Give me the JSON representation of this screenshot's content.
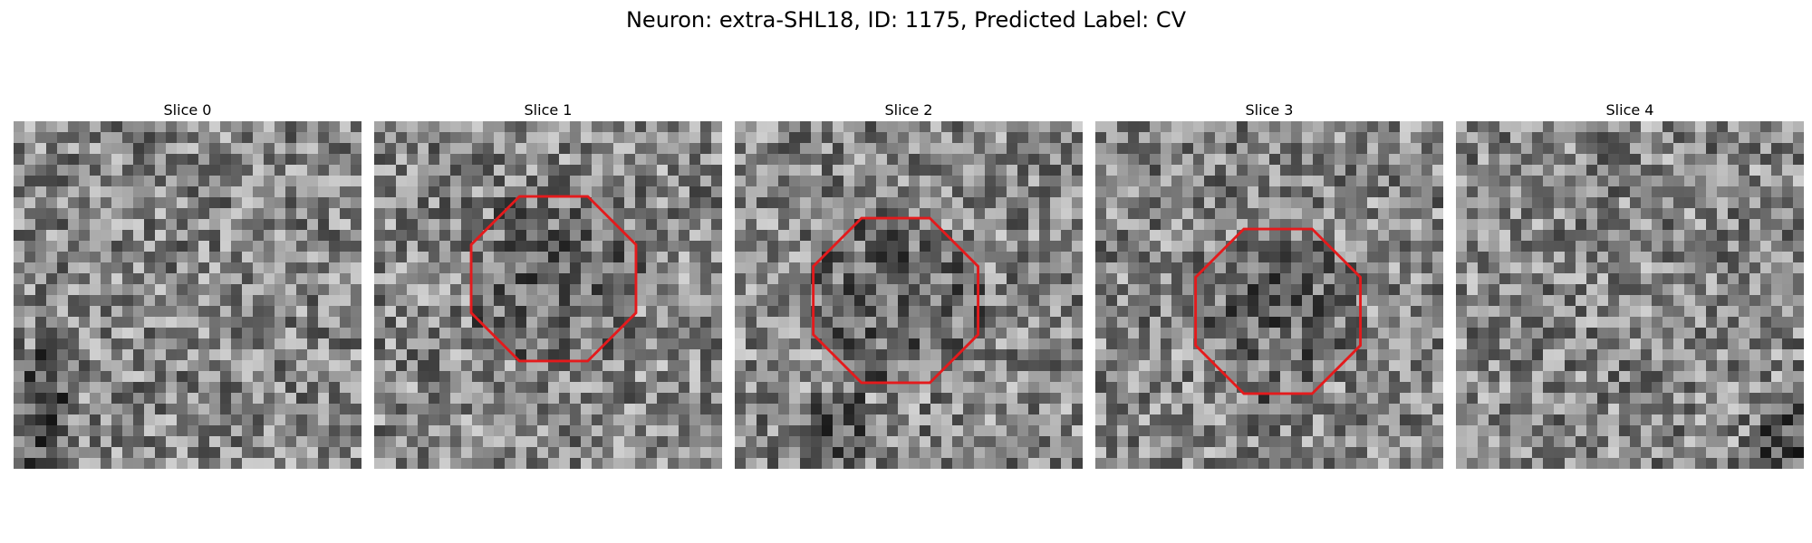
{
  "figure": {
    "title": "Neuron: extra-SHL18, ID: 1175, Predicted Label: CV",
    "colormap": "gray",
    "grid_size": 32,
    "outline_color": "#e41a1c"
  },
  "slices": [
    {
      "title": "Slice 0",
      "has_outline": false
    },
    {
      "title": "Slice 1",
      "has_outline": true,
      "outline": {
        "cx": 16.5,
        "cy": 14.5,
        "r": 8.2
      }
    },
    {
      "title": "Slice 2",
      "has_outline": true,
      "outline": {
        "cx": 14.8,
        "cy": 16.5,
        "r": 8.2
      }
    },
    {
      "title": "Slice 3",
      "has_outline": true,
      "outline": {
        "cx": 16.8,
        "cy": 17.5,
        "r": 8.2
      }
    },
    {
      "title": "Slice 4",
      "has_outline": false
    }
  ]
}
